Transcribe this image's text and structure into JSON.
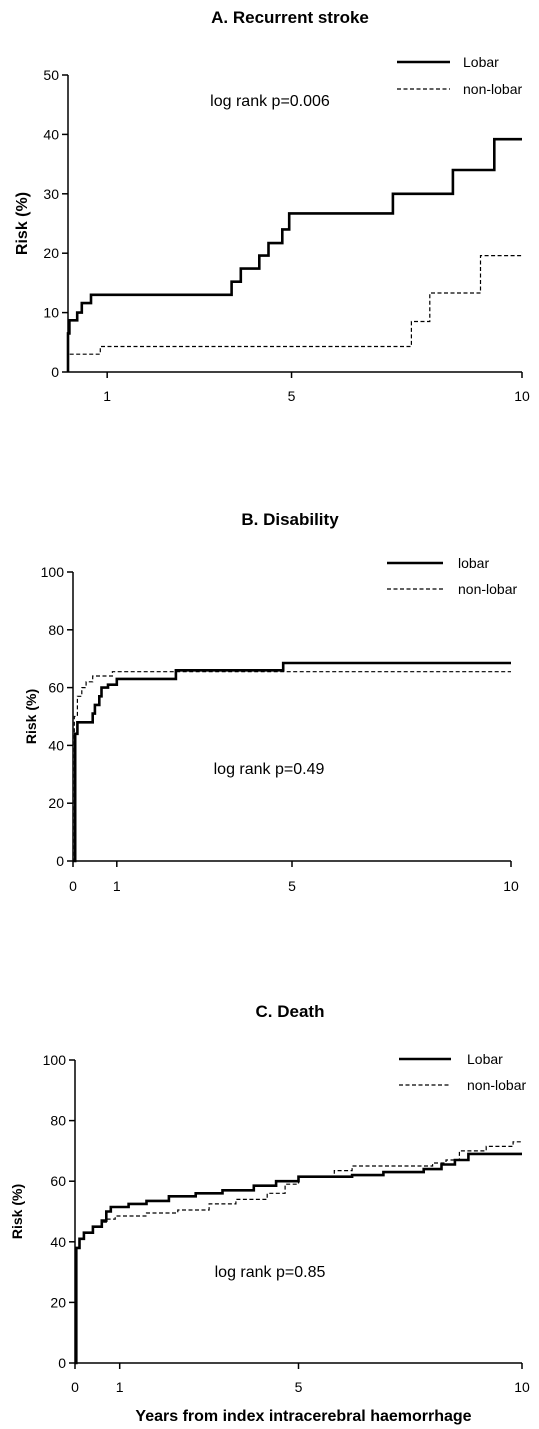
{
  "chart_data": [
    {
      "type": "line",
      "title": "A.   Recurrent stroke",
      "ylabel": "Risk (%)",
      "xlabel": "",
      "ylim": [
        0,
        50
      ],
      "yticks": [
        "0",
        "10",
        "20",
        "30",
        "40",
        "50"
      ],
      "xticks": [
        "1",
        "5",
        "10"
      ],
      "annotation": "log rank p=0.006",
      "legend_position": "top-right",
      "series": [
        {
          "name": "Lobar",
          "style": "solid",
          "points": [
            [
              0,
              0
            ],
            [
              0.03,
              2.2
            ],
            [
              0.07,
              4.3
            ],
            [
              0.12,
              6.5
            ],
            [
              0.18,
              8.7
            ],
            [
              0.35,
              10.0
            ],
            [
              0.45,
              11.6
            ],
            [
              0.65,
              13.0
            ],
            [
              3.5,
              13.0
            ],
            [
              3.7,
              15.2
            ],
            [
              3.9,
              17.4
            ],
            [
              4.3,
              19.6
            ],
            [
              4.5,
              21.7
            ],
            [
              4.8,
              24.0
            ],
            [
              4.95,
              26.7
            ],
            [
              7.2,
              26.7
            ],
            [
              7.2,
              30.0
            ],
            [
              8.5,
              30.0
            ],
            [
              8.5,
              34.0
            ],
            [
              9.4,
              34.0
            ],
            [
              9.4,
              39.2
            ],
            [
              10,
              39.2
            ]
          ],
          "color": "#000000"
        },
        {
          "name": "non-lobar",
          "style": "dashed",
          "points": [
            [
              0,
              0
            ],
            [
              0.05,
              3.0
            ],
            [
              0.8,
              3.0
            ],
            [
              0.85,
              4.3
            ],
            [
              7.6,
              4.3
            ],
            [
              7.6,
              8.5
            ],
            [
              8.0,
              8.5
            ],
            [
              8.0,
              13.3
            ],
            [
              9.1,
              13.3
            ],
            [
              9.1,
              19.6
            ],
            [
              10,
              19.6
            ]
          ],
          "color": "#000000"
        }
      ]
    },
    {
      "type": "line",
      "title": "B.   Disability",
      "ylabel": "Risk  (%)",
      "xlabel": "",
      "ylim": [
        0,
        100
      ],
      "yticks": [
        "0",
        "20",
        "40",
        "60",
        "80",
        "100"
      ],
      "xticks": [
        "0",
        "1",
        "5",
        "10"
      ],
      "annotation": "log rank p=0.49",
      "legend_position": "top-right",
      "series": [
        {
          "name": "lobar",
          "style": "solid",
          "points": [
            [
              0,
              0
            ],
            [
              0.05,
              44
            ],
            [
              0.1,
              48
            ],
            [
              0.4,
              48
            ],
            [
              0.45,
              51
            ],
            [
              0.5,
              54
            ],
            [
              0.6,
              57
            ],
            [
              0.65,
              60
            ],
            [
              0.8,
              61
            ],
            [
              1.0,
              63
            ],
            [
              2.3,
              63
            ],
            [
              2.35,
              66
            ],
            [
              4.8,
              66
            ],
            [
              4.8,
              68.5
            ],
            [
              10,
              68.5
            ]
          ],
          "color": "#000000"
        },
        {
          "name": "non-lobar",
          "style": "dashed",
          "points": [
            [
              0,
              0
            ],
            [
              0.03,
              50
            ],
            [
              0.1,
              57
            ],
            [
              0.2,
              60
            ],
            [
              0.3,
              62
            ],
            [
              0.45,
              64
            ],
            [
              0.7,
              64
            ],
            [
              0.9,
              65.5
            ],
            [
              10,
              65.5
            ]
          ],
          "color": "#000000"
        }
      ]
    },
    {
      "type": "line",
      "title": "C.   Death",
      "ylabel": "Risk (%)",
      "xlabel": "Years from index intracerebral haemorrhage",
      "ylim": [
        0,
        100
      ],
      "yticks": [
        "0",
        "20",
        "40",
        "60",
        "80",
        "100"
      ],
      "xticks": [
        "0",
        "1",
        "5",
        "10"
      ],
      "annotation": "log rank p=0.85",
      "legend_position": "top-right",
      "series": [
        {
          "name": "Lobar",
          "style": "solid",
          "points": [
            [
              0,
              0
            ],
            [
              0.03,
              38
            ],
            [
              0.1,
              41
            ],
            [
              0.2,
              43
            ],
            [
              0.4,
              45
            ],
            [
              0.6,
              47
            ],
            [
              0.7,
              50
            ],
            [
              0.8,
              51.5
            ],
            [
              1.2,
              52.5
            ],
            [
              1.6,
              53.5
            ],
            [
              2.1,
              55
            ],
            [
              2.7,
              56
            ],
            [
              3.3,
              57
            ],
            [
              4.0,
              58.5
            ],
            [
              4.5,
              60
            ],
            [
              5.0,
              61.5
            ],
            [
              6.2,
              62
            ],
            [
              6.9,
              63
            ],
            [
              7.8,
              64
            ],
            [
              8.2,
              65.5
            ],
            [
              8.5,
              67
            ],
            [
              8.8,
              69
            ],
            [
              10,
              69
            ]
          ],
          "color": "#000000"
        },
        {
          "name": "non-lobar",
          "style": "dashed",
          "points": [
            [
              0,
              0
            ],
            [
              0.03,
              38
            ],
            [
              0.1,
              41
            ],
            [
              0.2,
              43
            ],
            [
              0.4,
              45
            ],
            [
              0.6,
              46.5
            ],
            [
              0.7,
              47.5
            ],
            [
              0.9,
              48.5
            ],
            [
              1.6,
              49.5
            ],
            [
              2.3,
              50.5
            ],
            [
              3.0,
              52.5
            ],
            [
              3.6,
              54
            ],
            [
              4.3,
              56
            ],
            [
              4.7,
              59
            ],
            [
              5.0,
              61.5
            ],
            [
              5.8,
              63.5
            ],
            [
              6.2,
              65
            ],
            [
              7.6,
              65
            ],
            [
              8.0,
              66
            ],
            [
              8.3,
              67
            ],
            [
              8.6,
              70
            ],
            [
              9.2,
              71.5
            ],
            [
              9.8,
              73
            ],
            [
              10,
              73
            ]
          ],
          "color": "#000000"
        }
      ]
    }
  ]
}
